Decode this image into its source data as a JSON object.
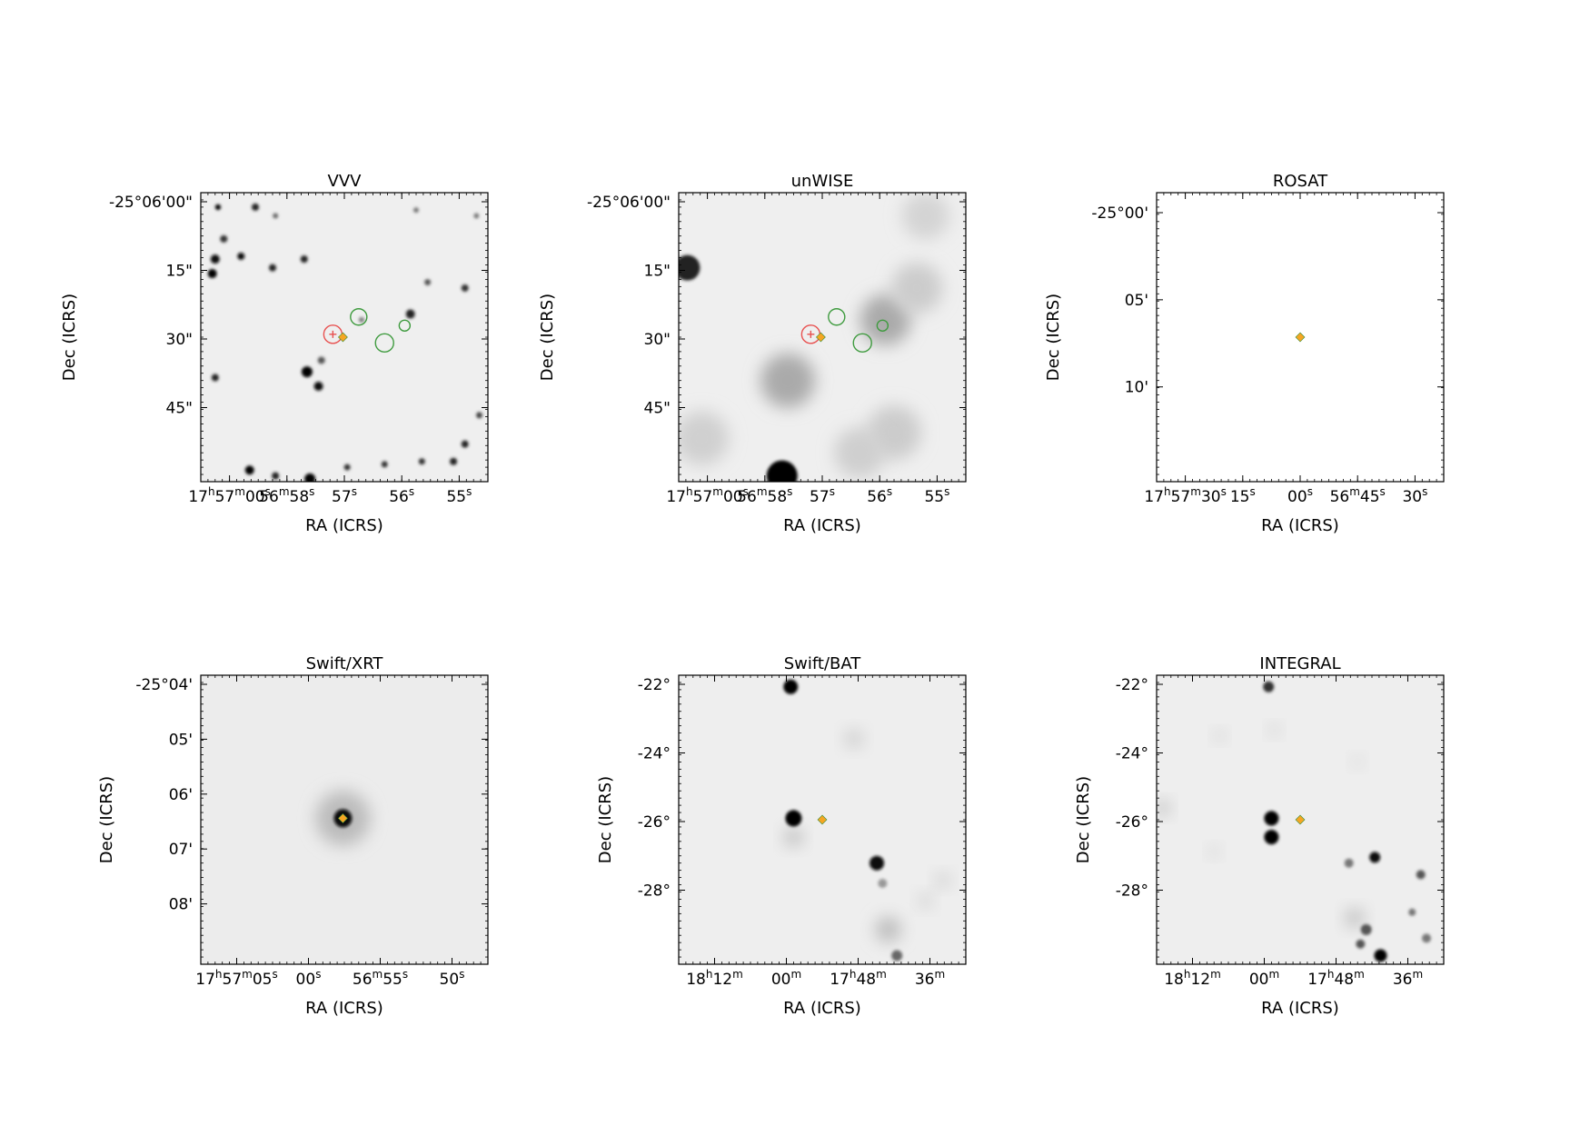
{
  "chart_data": [
    {
      "type": "image",
      "title": "VVV",
      "xlabel": "RA (ICRS)",
      "ylabel": "Dec (ICRS)",
      "xticks": [
        "17h57m00s",
        "56m58s",
        "57s",
        "56s",
        "55s"
      ],
      "yticks": [
        "-25°06'00\"",
        "15\"",
        "30\"",
        "45\""
      ],
      "background": "#efefef",
      "sources": [
        {
          "x": 0.06,
          "y": 0.05,
          "r": 3.2,
          "c": "#000"
        },
        {
          "x": 0.19,
          "y": 0.05,
          "r": 4,
          "c": "#222"
        },
        {
          "x": 0.26,
          "y": 0.08,
          "r": 3,
          "c": "#666"
        },
        {
          "x": 0.08,
          "y": 0.16,
          "r": 4,
          "c": "#333"
        },
        {
          "x": 0.05,
          "y": 0.23,
          "r": 5,
          "c": "#111"
        },
        {
          "x": 0.04,
          "y": 0.28,
          "r": 5,
          "c": "#000"
        },
        {
          "x": 0.14,
          "y": 0.22,
          "r": 4,
          "c": "#111"
        },
        {
          "x": 0.25,
          "y": 0.26,
          "r": 4,
          "c": "#222"
        },
        {
          "x": 0.36,
          "y": 0.23,
          "r": 4,
          "c": "#222"
        },
        {
          "x": 0.56,
          "y": 0.44,
          "r": 3,
          "c": "#777"
        },
        {
          "x": 0.37,
          "y": 0.62,
          "r": 6,
          "c": "#000"
        },
        {
          "x": 0.41,
          "y": 0.67,
          "r": 5,
          "c": "#111"
        },
        {
          "x": 0.42,
          "y": 0.58,
          "r": 4,
          "c": "#555"
        },
        {
          "x": 0.05,
          "y": 0.64,
          "r": 4,
          "c": "#222"
        },
        {
          "x": 0.73,
          "y": 0.42,
          "r": 5,
          "c": "#222"
        },
        {
          "x": 0.79,
          "y": 0.31,
          "r": 3.5,
          "c": "#555"
        },
        {
          "x": 0.92,
          "y": 0.33,
          "r": 4,
          "c": "#333"
        },
        {
          "x": 0.97,
          "y": 0.77,
          "r": 3.5,
          "c": "#444"
        },
        {
          "x": 0.92,
          "y": 0.87,
          "r": 4,
          "c": "#222"
        },
        {
          "x": 0.88,
          "y": 0.93,
          "r": 4,
          "c": "#222"
        },
        {
          "x": 0.77,
          "y": 0.93,
          "r": 3.5,
          "c": "#333"
        },
        {
          "x": 0.64,
          "y": 0.94,
          "r": 3.5,
          "c": "#333"
        },
        {
          "x": 0.51,
          "y": 0.95,
          "r": 3.5,
          "c": "#333"
        },
        {
          "x": 0.38,
          "y": 0.99,
          "r": 6,
          "c": "#000"
        },
        {
          "x": 0.26,
          "y": 0.98,
          "r": 4,
          "c": "#222"
        },
        {
          "x": 0.17,
          "y": 0.96,
          "r": 5,
          "c": "#000"
        },
        {
          "x": 0.96,
          "y": 0.08,
          "r": 3,
          "c": "#777"
        },
        {
          "x": 0.75,
          "y": 0.06,
          "r": 3,
          "c": "#777"
        }
      ],
      "blobs": [],
      "markers": {
        "red_circles": [
          {
            "x": 0.46,
            "y": 0.49,
            "r": 10
          }
        ],
        "green_circles": [
          {
            "x": 0.55,
            "y": 0.43,
            "r": 9
          },
          {
            "x": 0.64,
            "y": 0.52,
            "r": 10
          },
          {
            "x": 0.71,
            "y": 0.46,
            "r": 6
          }
        ],
        "red_plus": [
          {
            "x": 0.46,
            "y": 0.49
          }
        ],
        "orange_diamond": [
          {
            "x": 0.495,
            "y": 0.5
          }
        ]
      }
    },
    {
      "type": "image",
      "title": "unWISE",
      "xlabel": "RA (ICRS)",
      "ylabel": "Dec (ICRS)",
      "xticks": [
        "17h57m00s",
        "56m58s",
        "57s",
        "56s",
        "55s"
      ],
      "yticks": [
        "-25°06'00\"",
        "15\"",
        "30\"",
        "45\""
      ],
      "background": "#efefef",
      "sources": [
        {
          "x": 0.03,
          "y": 0.26,
          "r": 14,
          "c": "#222"
        },
        {
          "x": 0.36,
          "y": 0.98,
          "r": 17,
          "c": "#000"
        }
      ],
      "blobs": [
        {
          "x": 0.38,
          "y": 0.65,
          "r": 30,
          "c": "#aaa"
        },
        {
          "x": 0.72,
          "y": 0.44,
          "r": 28,
          "c": "#aaa"
        },
        {
          "x": 0.83,
          "y": 0.33,
          "r": 28,
          "c": "#ccc"
        },
        {
          "x": 0.75,
          "y": 0.83,
          "r": 30,
          "c": "#ccc"
        },
        {
          "x": 0.08,
          "y": 0.85,
          "r": 30,
          "c": "#d0d0d0"
        },
        {
          "x": 0.63,
          "y": 0.9,
          "r": 28,
          "c": "#cfcfcf"
        },
        {
          "x": 0.86,
          "y": 0.08,
          "r": 26,
          "c": "#d4d4d4"
        }
      ],
      "markers": {
        "red_circles": [
          {
            "x": 0.46,
            "y": 0.49,
            "r": 10
          }
        ],
        "green_circles": [
          {
            "x": 0.55,
            "y": 0.43,
            "r": 9
          },
          {
            "x": 0.64,
            "y": 0.52,
            "r": 10
          },
          {
            "x": 0.71,
            "y": 0.46,
            "r": 6
          }
        ],
        "red_plus": [
          {
            "x": 0.46,
            "y": 0.49
          }
        ],
        "orange_diamond": [
          {
            "x": 0.495,
            "y": 0.5
          }
        ]
      }
    },
    {
      "type": "image",
      "title": "ROSAT",
      "xlabel": "RA (ICRS)",
      "ylabel": "Dec (ICRS)",
      "xticks": [
        "17h57m30s",
        "15s",
        "00s",
        "56m45s",
        "30s"
      ],
      "yticks": [
        "-25°00'",
        "05'",
        "10'"
      ],
      "background": "#ffffff",
      "sources": [],
      "blobs": [],
      "markers": {
        "red_circles": [],
        "green_circles": [],
        "red_plus": [],
        "orange_diamond": [
          {
            "x": 0.5,
            "y": 0.5
          }
        ]
      }
    },
    {
      "type": "image",
      "title": "Swift/XRT",
      "xlabel": "RA (ICRS)",
      "ylabel": "Dec (ICRS)",
      "xticks": [
        "17h57m05s",
        "00s",
        "56m55s",
        "50s"
      ],
      "yticks": [
        "-25°04'",
        "05'",
        "06'",
        "07'",
        "08'"
      ],
      "background": "#ececec",
      "sources": [
        {
          "x": 0.495,
          "y": 0.495,
          "r": 10,
          "c": "#111"
        }
      ],
      "blobs": [
        {
          "x": 0.495,
          "y": 0.495,
          "r": 30,
          "c": "#bbb"
        }
      ],
      "markers": {
        "red_circles": [],
        "green_circles": [],
        "red_plus": [],
        "orange_diamond": [
          {
            "x": 0.495,
            "y": 0.495
          }
        ]
      }
    },
    {
      "type": "image",
      "title": "Swift/BAT",
      "xlabel": "RA (ICRS)",
      "ylabel": "Dec (ICRS)",
      "xticks": [
        "18h12m",
        "00m",
        "17h48m",
        "36m"
      ],
      "yticks": [
        "-22°",
        "-24°",
        "-26°",
        "-28°"
      ],
      "background": "#eeeeee",
      "sources": [
        {
          "x": 0.39,
          "y": 0.04,
          "r": 8,
          "c": "#000"
        },
        {
          "x": 0.4,
          "y": 0.495,
          "r": 9,
          "c": "#000"
        },
        {
          "x": 0.69,
          "y": 0.65,
          "r": 8,
          "c": "#111"
        },
        {
          "x": 0.71,
          "y": 0.72,
          "r": 5,
          "c": "#999"
        },
        {
          "x": 0.76,
          "y": 0.97,
          "r": 6,
          "c": "#666"
        }
      ],
      "blobs": [
        {
          "x": 0.4,
          "y": 0.56,
          "r": 10,
          "c": "#bbb"
        },
        {
          "x": 0.61,
          "y": 0.22,
          "r": 10,
          "c": "#ccc"
        },
        {
          "x": 0.73,
          "y": 0.88,
          "r": 14,
          "c": "#bbb"
        },
        {
          "x": 0.92,
          "y": 0.71,
          "r": 8,
          "c": "#ccc"
        },
        {
          "x": 0.86,
          "y": 0.78,
          "r": 8,
          "c": "#d0d0d0"
        }
      ],
      "markers": {
        "red_circles": [],
        "green_circles": [],
        "red_plus": [],
        "orange_diamond": [
          {
            "x": 0.5,
            "y": 0.5
          }
        ]
      }
    },
    {
      "type": "image",
      "title": "INTEGRAL",
      "xlabel": "RA (ICRS)",
      "ylabel": "Dec (ICRS)",
      "xticks": [
        "18h12m",
        "00m",
        "17h48m",
        "36m"
      ],
      "yticks": [
        "-22°",
        "-24°",
        "-26°",
        "-28°"
      ],
      "background": "#eeeeee",
      "sources": [
        {
          "x": 0.39,
          "y": 0.04,
          "r": 6,
          "c": "#333"
        },
        {
          "x": 0.4,
          "y": 0.495,
          "r": 8,
          "c": "#000"
        },
        {
          "x": 0.4,
          "y": 0.56,
          "r": 8,
          "c": "#000"
        },
        {
          "x": 0.76,
          "y": 0.63,
          "r": 6,
          "c": "#111"
        },
        {
          "x": 0.78,
          "y": 0.97,
          "r": 7,
          "c": "#000"
        },
        {
          "x": 0.73,
          "y": 0.88,
          "r": 6,
          "c": "#555"
        },
        {
          "x": 0.71,
          "y": 0.93,
          "r": 5,
          "c": "#555"
        },
        {
          "x": 0.92,
          "y": 0.69,
          "r": 5,
          "c": "#555"
        },
        {
          "x": 0.89,
          "y": 0.82,
          "r": 4,
          "c": "#777"
        },
        {
          "x": 0.94,
          "y": 0.91,
          "r": 5,
          "c": "#777"
        },
        {
          "x": 0.67,
          "y": 0.65,
          "r": 5,
          "c": "#777"
        }
      ],
      "blobs": [
        {
          "x": 0.22,
          "y": 0.21,
          "r": 6,
          "c": "#ccc"
        },
        {
          "x": 0.41,
          "y": 0.19,
          "r": 6,
          "c": "#ccc"
        },
        {
          "x": 0.69,
          "y": 0.84,
          "r": 10,
          "c": "#bbb"
        },
        {
          "x": 0.02,
          "y": 0.46,
          "r": 8,
          "c": "#bbb"
        },
        {
          "x": 0.7,
          "y": 0.3,
          "r": 6,
          "c": "#d4d4d4"
        },
        {
          "x": 0.2,
          "y": 0.61,
          "r": 6,
          "c": "#d0d0d0"
        }
      ],
      "markers": {
        "red_circles": [],
        "green_circles": [],
        "red_plus": [],
        "orange_diamond": [
          {
            "x": 0.5,
            "y": 0.5
          }
        ]
      }
    }
  ]
}
